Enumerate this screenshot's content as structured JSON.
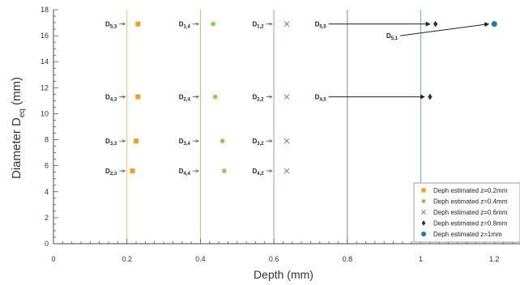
{
  "chart_data": {
    "type": "scatter",
    "xlabel": "Depth (mm)",
    "ylabel_main": "Diameter D",
    "ylabel_sub": "eq",
    "ylabel_unit": "(mm)",
    "xlim": [
      0,
      1.27
    ],
    "ylim": [
      0,
      18
    ],
    "xticks": [
      "0",
      "0.2",
      "0.4",
      "0.6",
      "0.8",
      "1",
      "1.2"
    ],
    "xtick_values": [
      0,
      0.2,
      0.4,
      0.6,
      0.8,
      1.0,
      1.2
    ],
    "yticks": [
      "0",
      "2",
      "4",
      "6",
      "8",
      "10",
      "12",
      "14",
      "16",
      "18"
    ],
    "ytick_values": [
      0,
      2,
      4,
      6,
      8,
      10,
      12,
      14,
      16,
      18
    ],
    "grid": false,
    "legend_position": "bottom-right",
    "vertical_lines": [
      {
        "x": 0.2,
        "color": "#e8c46a"
      },
      {
        "x": 0.4,
        "color": "#a9c27a"
      },
      {
        "x": 0.6,
        "color": "#b98ad6"
      },
      {
        "x": 0.8,
        "color": "#8a8a8a"
      },
      {
        "x": 1.0,
        "color": "#6aaed0"
      }
    ],
    "series": [
      {
        "name": "Deph estimated z=0.2mm",
        "marker": "square",
        "color": "#f0a020",
        "points": [
          [
            0.23,
            16.9
          ],
          [
            0.23,
            11.3
          ],
          [
            0.225,
            7.9
          ],
          [
            0.215,
            5.6
          ]
        ]
      },
      {
        "name": "Deph estimated z=0.4mm",
        "marker": "asterisk",
        "color": "#8cc040",
        "points": [
          [
            0.435,
            16.9
          ],
          [
            0.44,
            11.3
          ],
          [
            0.46,
            7.9
          ],
          [
            0.465,
            5.6
          ]
        ]
      },
      {
        "name": "Deph estimated z=0.6mm",
        "marker": "x",
        "color": "#9a6ab0",
        "points": [
          [
            0.635,
            16.9
          ],
          [
            0.635,
            11.3
          ],
          [
            0.635,
            7.9
          ],
          [
            0.635,
            5.6
          ]
        ]
      },
      {
        "name": "Deph estimated z=0.8mm",
        "marker": "diamond",
        "color": "#333333",
        "points": [
          [
            1.04,
            16.9
          ],
          [
            1.025,
            11.3
          ]
        ]
      },
      {
        "name": "Deph estimated z=1mm",
        "marker": "circle",
        "color": "#1f77b4",
        "points": [
          [
            1.2,
            16.9
          ]
        ]
      }
    ],
    "annotations": [
      {
        "main": "D",
        "sub": "5,3",
        "x": 0.19,
        "y": 16.9,
        "arrow": "short"
      },
      {
        "main": "D",
        "sub": "1,4",
        "x": 0.39,
        "y": 16.9,
        "arrow": "short"
      },
      {
        "main": "D",
        "sub": "1,2",
        "x": 0.59,
        "y": 16.9,
        "arrow": "short"
      },
      {
        "main": "D",
        "sub": "4,3",
        "x": 0.19,
        "y": 11.3,
        "arrow": "short"
      },
      {
        "main": "D",
        "sub": "2,4",
        "x": 0.39,
        "y": 11.3,
        "arrow": "short"
      },
      {
        "main": "D",
        "sub": "2,2",
        "x": 0.59,
        "y": 11.3,
        "arrow": "short"
      },
      {
        "main": "D",
        "sub": "3,3",
        "x": 0.19,
        "y": 7.9,
        "arrow": "short"
      },
      {
        "main": "D",
        "sub": "3,4",
        "x": 0.39,
        "y": 7.9,
        "arrow": "short"
      },
      {
        "main": "D",
        "sub": "3,2",
        "x": 0.59,
        "y": 7.9,
        "arrow": "short"
      },
      {
        "main": "D",
        "sub": "2,3",
        "x": 0.19,
        "y": 5.6,
        "arrow": "short"
      },
      {
        "main": "D",
        "sub": "4,4",
        "x": 0.39,
        "y": 5.6,
        "arrow": "short"
      },
      {
        "main": "D",
        "sub": "4,2",
        "x": 0.59,
        "y": 5.6,
        "arrow": "short"
      },
      {
        "main": "D",
        "sub": "5,5",
        "x": 0.76,
        "y": 16.9,
        "arrow": "long",
        "to": [
          1.04,
          16.9
        ]
      },
      {
        "main": "D",
        "sub": "4,5",
        "x": 0.76,
        "y": 11.3,
        "arrow": "long",
        "to": [
          1.025,
          11.3
        ]
      },
      {
        "main": "D",
        "sub": "5,1",
        "x": 0.955,
        "y": 16.0,
        "arrow": "long",
        "to": [
          1.2,
          16.9
        ]
      }
    ]
  }
}
